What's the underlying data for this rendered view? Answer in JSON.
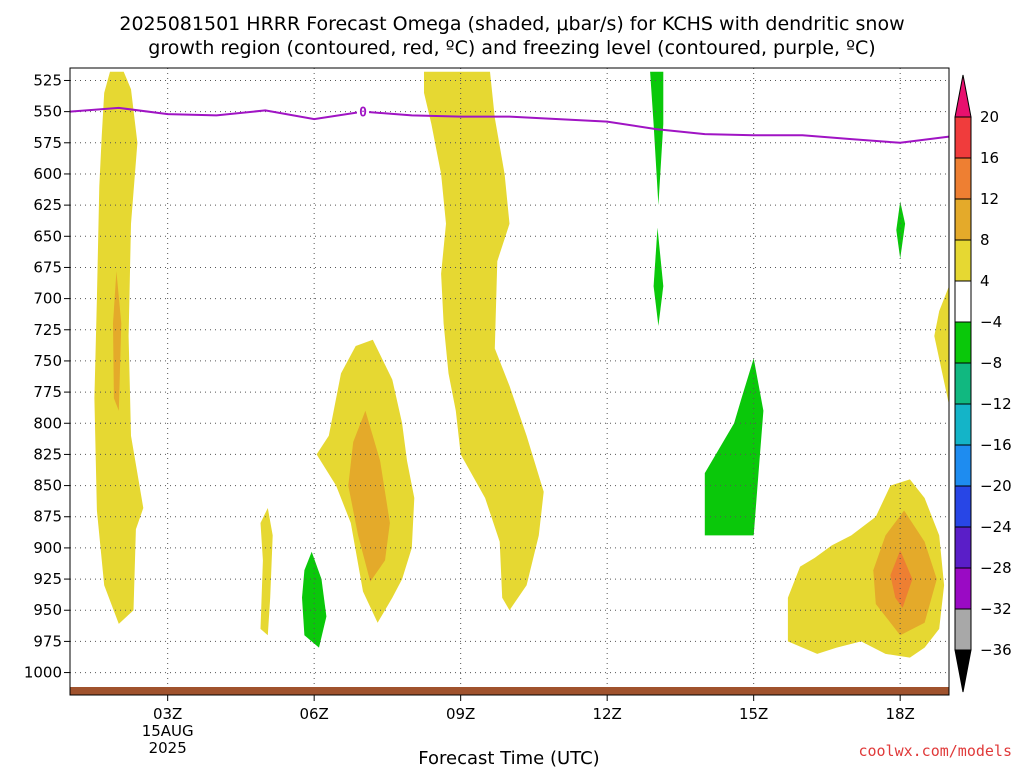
{
  "chart_data": {
    "type": "heatmap",
    "title_lines": [
      "2025081501 HRRR Forecast Omega (shaded, μbar/s) for KCHS with dendritic snow",
      "growth region (contoured, red, ºC) and freezing level (contoured, purple, ºC)"
    ],
    "xlabel": "Forecast Time (UTC)",
    "x_range_hours": [
      1,
      19
    ],
    "x_ticks": [
      {
        "hour": 3,
        "label": "03Z",
        "sub": [
          "15AUG",
          "2025"
        ]
      },
      {
        "hour": 6,
        "label": "06Z"
      },
      {
        "hour": 9,
        "label": "09Z"
      },
      {
        "hour": 12,
        "label": "12Z"
      },
      {
        "hour": 15,
        "label": "15Z"
      },
      {
        "hour": 18,
        "label": "18Z"
      }
    ],
    "y_range_mb": [
      1018,
      515
    ],
    "y_ticks": [
      525,
      550,
      575,
      600,
      625,
      650,
      675,
      700,
      725,
      750,
      775,
      800,
      825,
      850,
      875,
      900,
      925,
      950,
      975,
      1000
    ],
    "grid": true,
    "colorbar": {
      "ticks": [
        "20",
        "16",
        "12",
        "8",
        "4",
        "−4",
        "−8",
        "−12",
        "−16",
        "−20",
        "−24",
        "−28",
        "−32",
        "−36"
      ],
      "colors": [
        "#e8106e",
        "#f03c3c",
        "#ee7f32",
        "#e4aa2a",
        "#e6d832",
        "#ffffff",
        "#0ac80a",
        "#11b880",
        "#14b4c8",
        "#1e8cf0",
        "#2846e6",
        "#5a1ec8",
        "#9a0ac4",
        "#a8a8a8",
        "#000000"
      ]
    },
    "freezing_level": {
      "label": "0",
      "color": "#a014c4",
      "points": [
        [
          1,
          550
        ],
        [
          2,
          547
        ],
        [
          3,
          552
        ],
        [
          4,
          553
        ],
        [
          5,
          549
        ],
        [
          6,
          556
        ],
        [
          7,
          550
        ],
        [
          8,
          553
        ],
        [
          9,
          554
        ],
        [
          10,
          554
        ],
        [
          11,
          556
        ],
        [
          12,
          558
        ],
        [
          13,
          564
        ],
        [
          14,
          568
        ],
        [
          15,
          569
        ],
        [
          16,
          569
        ],
        [
          17,
          572
        ],
        [
          18,
          575
        ],
        [
          19,
          570
        ]
      ]
    },
    "omega_regions": [
      {
        "value": 4,
        "color": "#e6d832",
        "points": [
          [
            1.82,
            518
          ],
          [
            2.1,
            518
          ],
          [
            2.25,
            532
          ],
          [
            2.38,
            575
          ],
          [
            2.25,
            640
          ],
          [
            2.2,
            730
          ],
          [
            2.25,
            810
          ],
          [
            2.5,
            868
          ],
          [
            2.35,
            885
          ],
          [
            2.3,
            950
          ],
          [
            2.0,
            961
          ],
          [
            1.7,
            930
          ],
          [
            1.55,
            870
          ],
          [
            1.5,
            780
          ],
          [
            1.55,
            700
          ],
          [
            1.6,
            610
          ],
          [
            1.65,
            570
          ],
          [
            1.7,
            535
          ]
        ]
      },
      {
        "value": 8,
        "color": "#e4aa2a",
        "points": [
          [
            1.95,
            678
          ],
          [
            2.05,
            720
          ],
          [
            2.0,
            790
          ],
          [
            1.9,
            780
          ],
          [
            1.88,
            720
          ]
        ]
      },
      {
        "value": 4,
        "color": "#e6d832",
        "points": [
          [
            8.25,
            518
          ],
          [
            9.6,
            518
          ],
          [
            9.7,
            555
          ],
          [
            9.9,
            600
          ],
          [
            10.0,
            640
          ],
          [
            9.75,
            670
          ],
          [
            9.7,
            740
          ],
          [
            10.0,
            770
          ],
          [
            10.35,
            810
          ],
          [
            10.7,
            855
          ],
          [
            10.6,
            890
          ],
          [
            10.35,
            930
          ],
          [
            10.0,
            950
          ],
          [
            9.85,
            940
          ],
          [
            9.8,
            895
          ],
          [
            9.5,
            860
          ],
          [
            9.0,
            825
          ],
          [
            8.9,
            790
          ],
          [
            8.75,
            760
          ],
          [
            8.65,
            720
          ],
          [
            8.6,
            680
          ],
          [
            8.7,
            640
          ],
          [
            8.6,
            600
          ],
          [
            8.4,
            560
          ],
          [
            8.25,
            535
          ]
        ]
      },
      {
        "value": 4,
        "color": "#e6d832",
        "points": [
          [
            6.85,
            738
          ],
          [
            7.2,
            733
          ],
          [
            7.6,
            765
          ],
          [
            7.8,
            800
          ],
          [
            7.9,
            830
          ],
          [
            8.05,
            860
          ],
          [
            8.0,
            900
          ],
          [
            7.8,
            925
          ],
          [
            7.6,
            940
          ],
          [
            7.3,
            960
          ],
          [
            7.0,
            935
          ],
          [
            6.75,
            880
          ],
          [
            6.45,
            850
          ],
          [
            6.05,
            825
          ],
          [
            6.3,
            810
          ],
          [
            6.55,
            760
          ]
        ]
      },
      {
        "value": 8,
        "color": "#e4aa2a",
        "points": [
          [
            7.05,
            790
          ],
          [
            7.35,
            830
          ],
          [
            7.55,
            880
          ],
          [
            7.45,
            910
          ],
          [
            7.15,
            927
          ],
          [
            6.9,
            890
          ],
          [
            6.7,
            850
          ],
          [
            6.8,
            815
          ]
        ]
      },
      {
        "value": 4,
        "color": "#e6d832",
        "points": [
          [
            5.05,
            868
          ],
          [
            5.15,
            890
          ],
          [
            5.1,
            940
          ],
          [
            5.05,
            970
          ],
          [
            4.9,
            965
          ],
          [
            4.95,
            910
          ],
          [
            4.9,
            880
          ]
        ]
      },
      {
        "value": -4,
        "color": "#0ac80a",
        "points": [
          [
            5.95,
            903
          ],
          [
            6.15,
            925
          ],
          [
            6.25,
            955
          ],
          [
            6.1,
            980
          ],
          [
            5.8,
            970
          ],
          [
            5.75,
            940
          ],
          [
            5.8,
            918
          ]
        ]
      },
      {
        "value": -4,
        "color": "#0ac80a",
        "points": [
          [
            12.88,
            518
          ],
          [
            13.15,
            518
          ],
          [
            13.15,
            560
          ],
          [
            13.05,
            625
          ],
          [
            12.95,
            560
          ]
        ]
      },
      {
        "value": -4,
        "color": "#0ac80a",
        "points": [
          [
            13.03,
            643
          ],
          [
            13.15,
            690
          ],
          [
            13.05,
            722
          ],
          [
            12.95,
            690
          ]
        ]
      },
      {
        "value": -4,
        "color": "#0ac80a",
        "points": [
          [
            15.0,
            748
          ],
          [
            15.2,
            790
          ],
          [
            15.1,
            840
          ],
          [
            15.0,
            890
          ],
          [
            14.0,
            890
          ],
          [
            14.0,
            840
          ],
          [
            14.6,
            800
          ],
          [
            14.75,
            780
          ]
        ]
      },
      {
        "value": 4,
        "color": "#e6d832",
        "points": [
          [
            16.25,
            908
          ],
          [
            16.6,
            898
          ],
          [
            17.0,
            890
          ],
          [
            17.5,
            875
          ],
          [
            17.8,
            850
          ],
          [
            18.2,
            845
          ],
          [
            18.5,
            860
          ],
          [
            18.8,
            890
          ],
          [
            18.9,
            930
          ],
          [
            18.8,
            965
          ],
          [
            18.5,
            980
          ],
          [
            18.2,
            988
          ],
          [
            17.7,
            985
          ],
          [
            17.2,
            975
          ],
          [
            16.7,
            980
          ],
          [
            16.3,
            985
          ],
          [
            15.7,
            975
          ],
          [
            15.7,
            940
          ],
          [
            15.95,
            915
          ]
        ]
      },
      {
        "value": 8,
        "color": "#e4aa2a",
        "points": [
          [
            18.08,
            870
          ],
          [
            18.5,
            895
          ],
          [
            18.75,
            925
          ],
          [
            18.5,
            960
          ],
          [
            18.0,
            970
          ],
          [
            17.5,
            945
          ],
          [
            17.45,
            918
          ],
          [
            17.7,
            890
          ]
        ]
      },
      {
        "value": 12,
        "color": "#ee7f32",
        "points": [
          [
            18.0,
            902
          ],
          [
            18.25,
            925
          ],
          [
            18.05,
            948
          ],
          [
            17.9,
            940
          ],
          [
            17.8,
            922
          ]
        ]
      },
      {
        "value": -4,
        "color": "#0ac80a",
        "points": [
          [
            18.0,
            622
          ],
          [
            18.1,
            640
          ],
          [
            18.0,
            668
          ],
          [
            17.92,
            645
          ]
        ]
      },
      {
        "value": 4,
        "color": "#e6d832",
        "points": [
          [
            19.0,
            690
          ],
          [
            19.0,
            785
          ],
          [
            18.7,
            730
          ],
          [
            18.8,
            710
          ]
        ]
      }
    ],
    "surface": {
      "color": "#a0522d"
    },
    "credit": "coolwx.com/models"
  }
}
